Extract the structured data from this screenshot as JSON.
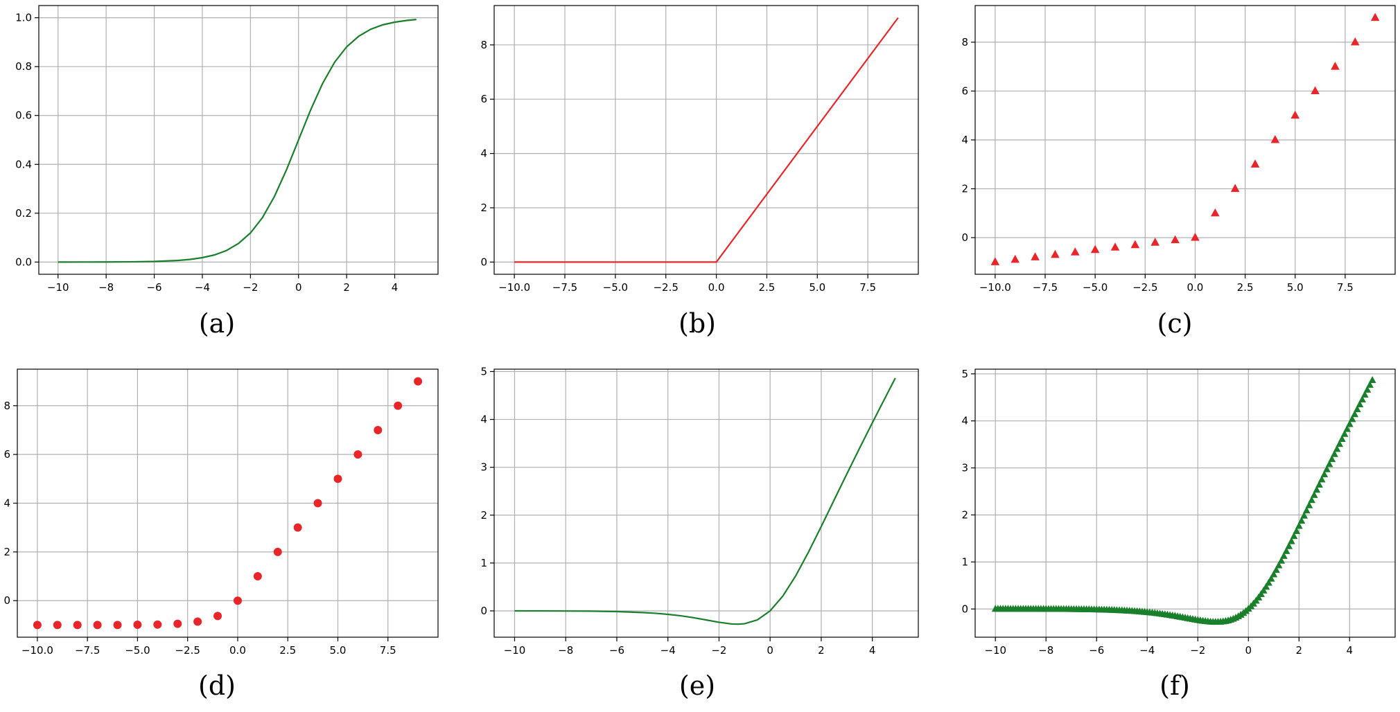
{
  "colors": {
    "green": "#1a7f2a",
    "red": "#e8262a",
    "grid": "#b0b0b0",
    "frame": "#000000"
  },
  "chart_data": [
    {
      "id": "a",
      "type": "line",
      "panel_label": "(a)",
      "title": "",
      "xlabel": "",
      "ylabel": "",
      "xlim": [
        -10.8,
        5.8
      ],
      "ylim": [
        -0.05,
        1.05
      ],
      "xticks": [
        -10,
        -8,
        -6,
        -4,
        -2,
        0,
        2,
        4
      ],
      "xtick_labels": [
        "−10",
        "−8",
        "−6",
        "−4",
        "−2",
        "0",
        "2",
        "4"
      ],
      "yticks": [
        0.0,
        0.2,
        0.4,
        0.6,
        0.8,
        1.0
      ],
      "ytick_labels": [
        "0.0",
        "0.2",
        "0.4",
        "0.6",
        "0.8",
        "1.0"
      ],
      "grid": true,
      "series": [
        {
          "color": "#1a7f2a",
          "marker": "none",
          "x": [
            -10,
            -9,
            -8,
            -7,
            -6,
            -5,
            -4.5,
            -4,
            -3.5,
            -3,
            -2.5,
            -2,
            -1.5,
            -1,
            -0.5,
            0,
            0.5,
            1,
            1.5,
            2,
            2.5,
            3,
            3.5,
            4,
            4.5,
            4.9
          ],
          "y": [
            5e-05,
            0.0001,
            0.0003,
            0.0009,
            0.0025,
            0.0067,
            0.011,
            0.018,
            0.029,
            0.047,
            0.076,
            0.119,
            0.182,
            0.269,
            0.378,
            0.5,
            0.622,
            0.731,
            0.818,
            0.881,
            0.924,
            0.953,
            0.971,
            0.982,
            0.989,
            0.993
          ]
        }
      ]
    },
    {
      "id": "b",
      "type": "line",
      "panel_label": "(b)",
      "title": "",
      "xlabel": "",
      "ylabel": "",
      "xlim": [
        -11,
        10
      ],
      "ylim": [
        -0.45,
        9.45
      ],
      "xticks": [
        -10,
        -7.5,
        -5,
        -2.5,
        0,
        2.5,
        5,
        7.5
      ],
      "xtick_labels": [
        "−10.0",
        "−7.5",
        "−5.0",
        "−2.5",
        "0.0",
        "2.5",
        "5.0",
        "7.5"
      ],
      "yticks": [
        0,
        2,
        4,
        6,
        8
      ],
      "ytick_labels": [
        "0",
        "2",
        "4",
        "6",
        "8"
      ],
      "grid": true,
      "series": [
        {
          "color": "#e8262a",
          "marker": "none",
          "x": [
            -10,
            0,
            9
          ],
          "y": [
            0,
            0,
            9
          ]
        }
      ]
    },
    {
      "id": "c",
      "type": "scatter",
      "panel_label": "(c)",
      "title": "",
      "xlabel": "",
      "ylabel": "",
      "xlim": [
        -11,
        10
      ],
      "ylim": [
        -1.5,
        9.5
      ],
      "xticks": [
        -10,
        -7.5,
        -5,
        -2.5,
        0,
        2.5,
        5,
        7.5
      ],
      "xtick_labels": [
        "−10.0",
        "−7.5",
        "−5.0",
        "−2.5",
        "0.0",
        "2.5",
        "5.0",
        "7.5"
      ],
      "yticks": [
        0,
        2,
        4,
        6,
        8
      ],
      "ytick_labels": [
        "0",
        "2",
        "4",
        "6",
        "8"
      ],
      "grid": true,
      "series": [
        {
          "color": "#e8262a",
          "marker": "triangle",
          "x": [
            -10,
            -9,
            -8,
            -7,
            -6,
            -5,
            -4,
            -3,
            -2,
            -1,
            0,
            1,
            2,
            3,
            4,
            5,
            6,
            7,
            8,
            9
          ],
          "y": [
            -1.0,
            -0.9,
            -0.8,
            -0.7,
            -0.6,
            -0.5,
            -0.4,
            -0.3,
            -0.2,
            -0.1,
            0,
            1,
            2,
            3,
            4,
            5,
            6,
            7,
            8,
            9
          ]
        }
      ]
    },
    {
      "id": "d",
      "type": "scatter",
      "panel_label": "(d)",
      "title": "",
      "xlabel": "",
      "ylabel": "",
      "xlim": [
        -11,
        10
      ],
      "ylim": [
        -1.5,
        9.5
      ],
      "xticks": [
        -10,
        -7.5,
        -5,
        -2.5,
        0,
        2.5,
        5,
        7.5
      ],
      "xtick_labels": [
        "−10.0",
        "−7.5",
        "−5.0",
        "−2.5",
        "0.0",
        "2.5",
        "5.0",
        "7.5"
      ],
      "yticks": [
        0,
        2,
        4,
        6,
        8
      ],
      "ytick_labels": [
        "0",
        "2",
        "4",
        "6",
        "8"
      ],
      "grid": true,
      "series": [
        {
          "color": "#e8262a",
          "marker": "circle",
          "x": [
            -10,
            -9,
            -8,
            -7,
            -6,
            -5,
            -4,
            -3,
            -2,
            -1,
            0,
            1,
            2,
            3,
            4,
            5,
            6,
            7,
            8,
            9
          ],
          "y": [
            -1.0,
            -1.0,
            -1.0,
            -1.0,
            -1.0,
            -0.99,
            -0.98,
            -0.95,
            -0.86,
            -0.63,
            0,
            1,
            2,
            3,
            4,
            5,
            6,
            7,
            8,
            9
          ]
        }
      ]
    },
    {
      "id": "e",
      "type": "line",
      "panel_label": "(e)",
      "title": "",
      "xlabel": "",
      "ylabel": "",
      "xlim": [
        -10.8,
        5.8
      ],
      "ylim": [
        -0.55,
        5.05
      ],
      "xticks": [
        -10,
        -8,
        -6,
        -4,
        -2,
        0,
        2,
        4
      ],
      "xtick_labels": [
        "−10",
        "−8",
        "−6",
        "−4",
        "−2",
        "0",
        "2",
        "4"
      ],
      "yticks": [
        0,
        1,
        2,
        3,
        4,
        5
      ],
      "ytick_labels": [
        "0",
        "1",
        "2",
        "3",
        "4",
        "5"
      ],
      "grid": true,
      "series": [
        {
          "color": "#1a7f2a",
          "marker": "none",
          "x": [
            -10,
            -9,
            -8,
            -7,
            -6,
            -5,
            -4.5,
            -4,
            -3.5,
            -3,
            -2.5,
            -2,
            -1.5,
            -1.25,
            -1,
            -0.5,
            0,
            0.5,
            1,
            1.5,
            2,
            2.5,
            3,
            3.5,
            4,
            4.5,
            4.9
          ],
          "y": [
            -0.0005,
            -0.001,
            -0.003,
            -0.006,
            -0.015,
            -0.034,
            -0.05,
            -0.072,
            -0.102,
            -0.142,
            -0.19,
            -0.238,
            -0.274,
            -0.278,
            -0.269,
            -0.189,
            0,
            0.311,
            0.731,
            1.227,
            1.762,
            2.311,
            2.858,
            3.399,
            3.928,
            4.45,
            4.864
          ]
        }
      ]
    },
    {
      "id": "f",
      "type": "scatter",
      "panel_label": "(f)",
      "title": "",
      "xlabel": "",
      "ylabel": "",
      "xlim": [
        -10.8,
        5.8
      ],
      "ylim": [
        -0.6,
        5.1
      ],
      "xticks": [
        -10,
        -8,
        -6,
        -4,
        -2,
        0,
        2,
        4
      ],
      "xtick_labels": [
        "−10",
        "−8",
        "−6",
        "−4",
        "−2",
        "0",
        "2",
        "4"
      ],
      "yticks": [
        0,
        1,
        2,
        3,
        4,
        5
      ],
      "ytick_labels": [
        "0",
        "1",
        "2",
        "3",
        "4",
        "5"
      ],
      "grid": true,
      "series": [
        {
          "color": "#1a7f2a",
          "marker": "triangle",
          "x_start": -10,
          "x_end": 4.9,
          "x_step": 0.1,
          "function": "x*sigmoid(x) - density of samples along the curve"
        }
      ]
    }
  ]
}
